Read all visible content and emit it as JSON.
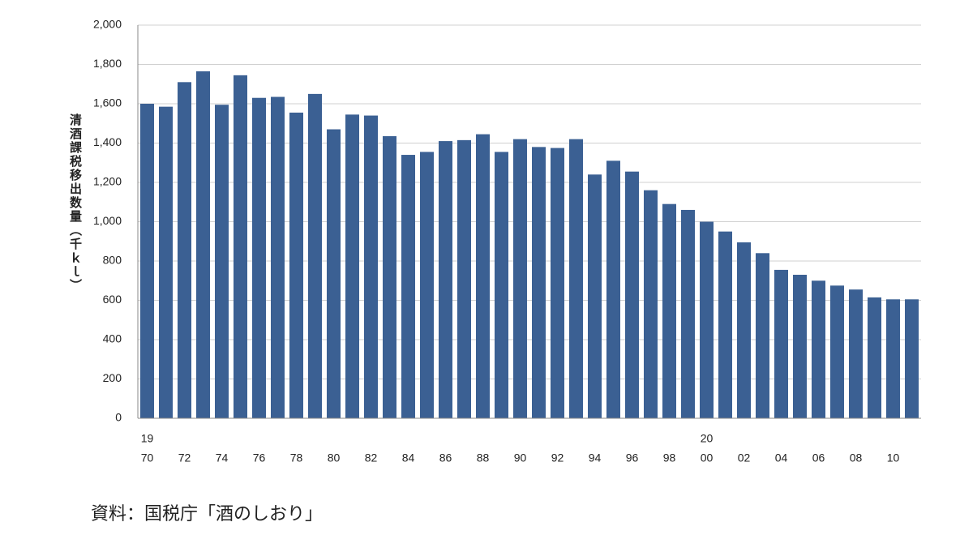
{
  "chart_data": {
    "type": "bar",
    "y_axis_label": "清酒課税移出数量（千ｋｌ）",
    "categories": [
      "70",
      null,
      "72",
      null,
      "74",
      null,
      "76",
      null,
      "78",
      null,
      "80",
      null,
      "82",
      null,
      "84",
      null,
      "86",
      null,
      "88",
      null,
      "90",
      null,
      "92",
      null,
      "94",
      null,
      "96",
      null,
      "98",
      null,
      "00",
      null,
      "02",
      null,
      "04",
      null,
      "06",
      null,
      "08",
      null,
      "10",
      null
    ],
    "x_century_labels": [
      "19",
      "20"
    ],
    "values": [
      1600,
      1585,
      1710,
      1765,
      1595,
      1745,
      1630,
      1635,
      1555,
      1650,
      1470,
      1545,
      1540,
      1435,
      1340,
      1355,
      1410,
      1415,
      1445,
      1355,
      1420,
      1380,
      1375,
      1420,
      1240,
      1310,
      1255,
      1160,
      1090,
      1060,
      1000,
      950,
      895,
      840,
      755,
      730,
      700,
      675,
      655,
      615,
      605,
      605
    ],
    "color": "#3b6093",
    "ylim": [
      0,
      2000
    ],
    "yticks": [
      0,
      200,
      400,
      600,
      800,
      {
        "value": 1000,
        "label": "1,000"
      },
      {
        "value": 1200,
        "label": "1,200"
      },
      {
        "value": 1400,
        "label": "1,400"
      },
      {
        "value": 1600,
        "label": "1,600"
      },
      {
        "value": 1800,
        "label": "1,800"
      },
      {
        "value": 2000,
        "label": "2,000"
      }
    ],
    "grid": true,
    "source": "資料：国税庁「酒のしおり」"
  }
}
